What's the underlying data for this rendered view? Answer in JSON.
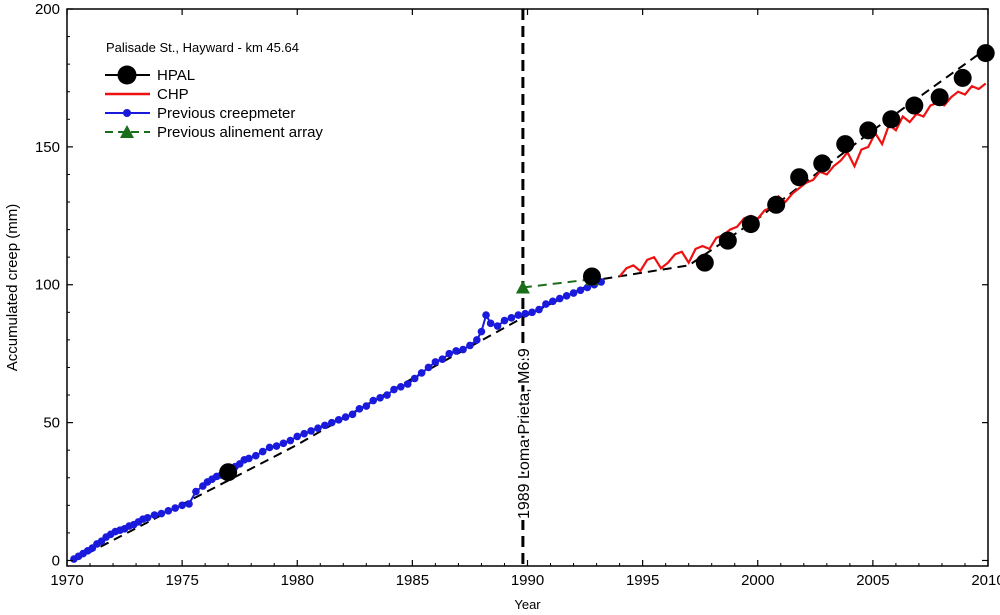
{
  "chart_data": {
    "type": "line",
    "title": "",
    "subtitle": "Palisade St., Hayward - km 45.64",
    "xlabel": "Year",
    "ylabel": "Accumulated creep (mm)",
    "xlim": [
      1970,
      2010
    ],
    "ylim": [
      -2,
      200
    ],
    "xticks": [
      1970,
      1975,
      1980,
      1985,
      1990,
      1995,
      2000,
      2005,
      2010
    ],
    "yticks": [
      0,
      50,
      100,
      150,
      200
    ],
    "grid": false,
    "legend_position": "top-left",
    "event": {
      "x": 1989.8,
      "label": "1989 Loma Prieta, M6.9"
    },
    "series": [
      {
        "name": "Previous creepmeter",
        "color": "#1a1adc",
        "style": "line-with-dots",
        "x": [
          1970.3,
          1970.5,
          1970.7,
          1970.9,
          1971.1,
          1971.3,
          1971.5,
          1971.7,
          1971.9,
          1972.1,
          1972.3,
          1972.5,
          1972.7,
          1972.9,
          1973.1,
          1973.3,
          1973.5,
          1973.8,
          1974.1,
          1974.4,
          1974.7,
          1975.0,
          1975.3,
          1975.6,
          1975.9,
          1976.1,
          1976.3,
          1976.5,
          1976.7,
          1976.9,
          1977.1,
          1977.3,
          1977.5,
          1977.7,
          1977.9,
          1978.2,
          1978.5,
          1978.8,
          1979.1,
          1979.4,
          1979.7,
          1980.0,
          1980.3,
          1980.6,
          1980.9,
          1981.2,
          1981.5,
          1981.8,
          1982.1,
          1982.4,
          1982.7,
          1983.0,
          1983.3,
          1983.6,
          1983.9,
          1984.2,
          1984.5,
          1984.8,
          1985.1,
          1985.4,
          1985.7,
          1986.0,
          1986.3,
          1986.6,
          1986.9,
          1987.2,
          1987.5,
          1987.8,
          1988.0,
          1988.2,
          1988.4,
          1988.7,
          1989.0,
          1989.3,
          1989.6,
          1989.9,
          1990.2,
          1990.5,
          1990.8,
          1991.1,
          1991.4,
          1991.7,
          1992.0,
          1992.3,
          1992.6,
          1992.9,
          1993.2
        ],
        "y": [
          0.5,
          1.5,
          2.5,
          3.5,
          4.5,
          6,
          7,
          8.5,
          9.5,
          10.5,
          11,
          11.5,
          12.5,
          13,
          14,
          15,
          15.5,
          16.5,
          17,
          18,
          19,
          20,
          20.5,
          25,
          27,
          28.5,
          29.5,
          30.5,
          31,
          32,
          33,
          34,
          35,
          36.5,
          37,
          38,
          39.5,
          41,
          41.5,
          42.5,
          43.5,
          45,
          46,
          47,
          48,
          49,
          50,
          51,
          52,
          53,
          55,
          56,
          58,
          59,
          60,
          62,
          63,
          64,
          66,
          68,
          70,
          72,
          73,
          75,
          76,
          76.5,
          78,
          80,
          83,
          89,
          86,
          85,
          87,
          88,
          89,
          89.5,
          90,
          91,
          93,
          94,
          95,
          96,
          97,
          98,
          99,
          100,
          101
        ]
      },
      {
        "name": "Previous alinement array",
        "color": "#1a6e1a",
        "style": "dashed-with-triangles",
        "x": [
          1989.8,
          1992.8
        ],
        "y": [
          99,
          102
        ]
      },
      {
        "name": "CHP",
        "color": "#ee1111",
        "style": "line",
        "x": [
          1994.0,
          1994.3,
          1994.6,
          1994.9,
          1995.2,
          1995.5,
          1995.8,
          1996.1,
          1996.4,
          1996.7,
          1997.0,
          1997.3,
          1997.6,
          1997.9,
          1998.2,
          1998.5,
          1998.8,
          1999.1,
          1999.4,
          1999.7,
          2000.0,
          2000.3,
          2000.6,
          2000.9,
          2001.2,
          2001.5,
          2001.8,
          2002.1,
          2002.4,
          2002.7,
          2003.0,
          2003.3,
          2003.6,
          2003.9,
          2004.2,
          2004.5,
          2004.8,
          2005.1,
          2005.4,
          2005.7,
          2006.0,
          2006.3,
          2006.6,
          2006.9,
          2007.2,
          2007.5,
          2007.8,
          2008.1,
          2008.4,
          2008.7,
          2009.0,
          2009.3,
          2009.6,
          2009.9
        ],
        "y": [
          103,
          106,
          107,
          105,
          109,
          110,
          106,
          108,
          111,
          112,
          108,
          113,
          114,
          113,
          117,
          118,
          120,
          121,
          124,
          125,
          124,
          127,
          128,
          132,
          130,
          133,
          135,
          137,
          138,
          141,
          140,
          143,
          145,
          148,
          143,
          149,
          150,
          155,
          151,
          158,
          156,
          161,
          159,
          162,
          161,
          165,
          166,
          165,
          168,
          170,
          169,
          172,
          171,
          173
        ]
      },
      {
        "name": "HPAL",
        "color": "#000000",
        "style": "dashed-with-large-dots",
        "x": [
          1977.0,
          1992.8,
          1997.7,
          1998.7,
          1999.7,
          2000.8,
          2001.8,
          2002.8,
          2003.8,
          2004.8,
          2005.8,
          2006.8,
          2007.9,
          2008.9,
          2009.9
        ],
        "y": [
          32,
          103,
          108,
          116,
          122,
          129,
          139,
          144,
          151,
          156,
          160,
          165,
          168,
          175,
          184
        ]
      }
    ],
    "trend_line": {
      "color": "#000000",
      "style": "dashed",
      "x": [
        1970.3,
        1980,
        1985,
        1990,
        1993.2,
        1997,
        2000,
        2005,
        2010
      ],
      "y": [
        0,
        42,
        66,
        89,
        102,
        107,
        124,
        156,
        186
      ]
    }
  }
}
